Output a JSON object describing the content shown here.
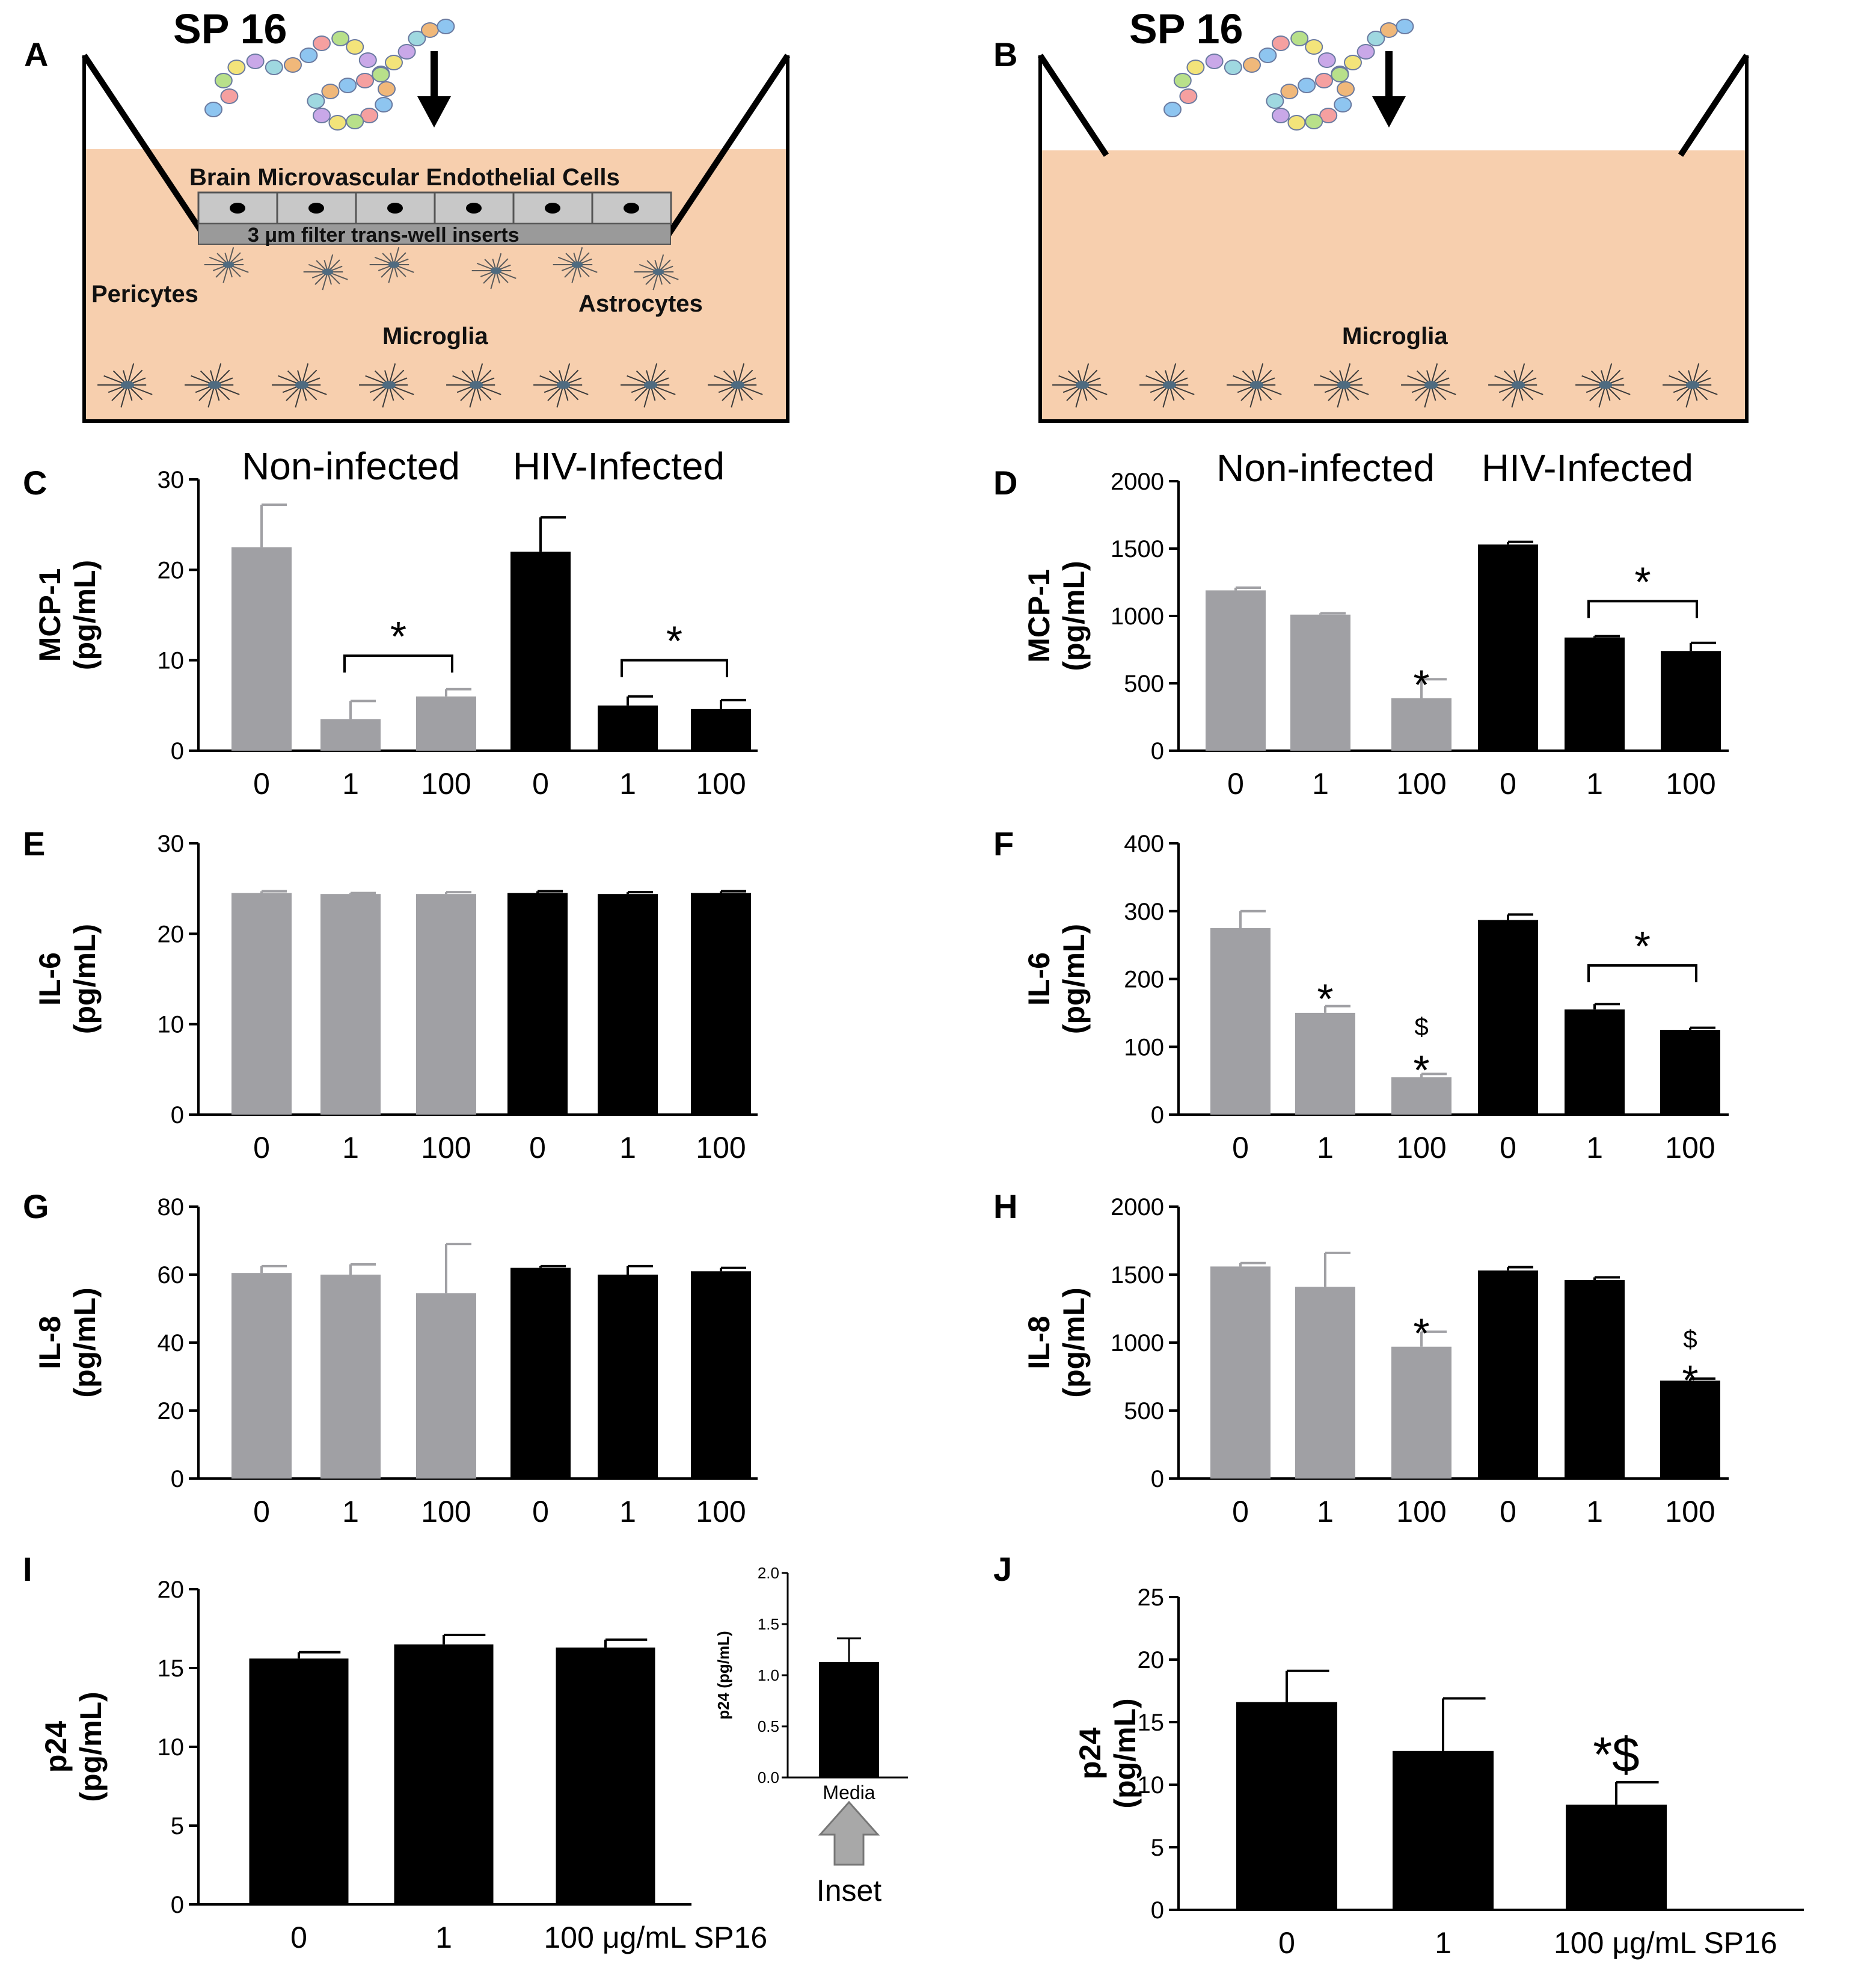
{
  "colors": {
    "noninfected": "#a0a0a4",
    "infected": "#000000",
    "medium": "#f7cfae",
    "cell": "#c8c8c8",
    "filter": "#9a9a9a"
  },
  "diagram_a": {
    "letter": "A",
    "title": "SP 16",
    "labels": {
      "bmvec": "Brain Microvascular Endothelial Cells",
      "filter": "3 μm filter trans-well inserts",
      "pericytes": "Pericytes",
      "astrocytes": "Astrocytes",
      "microglia": "Microglia"
    }
  },
  "diagram_b": {
    "letter": "B",
    "title": "SP 16",
    "labels": {
      "microglia": "Microglia"
    }
  },
  "chart_data": [
    {
      "id": "C",
      "type": "bar",
      "ylabel": "MCP-1\n(pg/mL)",
      "ylim": [
        0,
        30
      ],
      "yticks": [
        0,
        10,
        20,
        30
      ],
      "group_labels": [
        "Non-infected",
        "HIV-Infected"
      ],
      "categories": [
        "0",
        "1",
        "100",
        "0",
        "1",
        "100"
      ],
      "groups": [
        "noninfected",
        "noninfected",
        "noninfected",
        "infected",
        "infected",
        "infected"
      ],
      "values": [
        22.5,
        3.5,
        6.0,
        22.0,
        5.0,
        4.6
      ],
      "errors": [
        4.7,
        2.0,
        0.8,
        3.8,
        1.0,
        1.0
      ],
      "annotations": [
        {
          "kind": "bracket",
          "from": 1,
          "to": 2,
          "y": 10.5,
          "text": "*"
        },
        {
          "kind": "bracket",
          "from": 4,
          "to": 5,
          "y": 10.0,
          "text": "*"
        }
      ]
    },
    {
      "id": "D",
      "type": "bar",
      "ylabel": "MCP-1\n(pg/mL)",
      "ylim": [
        0,
        2000
      ],
      "yticks": [
        0,
        500,
        1000,
        1500,
        2000
      ],
      "group_labels": [
        "Non-infected",
        "HIV-Infected"
      ],
      "categories": [
        "0",
        "1",
        "100",
        "0",
        "1",
        "100"
      ],
      "groups": [
        "noninfected",
        "noninfected",
        "noninfected",
        "infected",
        "infected",
        "infected"
      ],
      "values": [
        1190,
        1010,
        390,
        1530,
        840,
        740
      ],
      "errors": [
        20,
        10,
        140,
        20,
        10,
        60
      ],
      "annotations": [
        {
          "kind": "star",
          "bar": 2,
          "y": 560,
          "text": "*"
        },
        {
          "kind": "bracket",
          "from": 4,
          "to": 5,
          "y": 1110,
          "text": "*"
        }
      ]
    },
    {
      "id": "E",
      "type": "bar",
      "ylabel": "IL-6\n(pg/mL)",
      "ylim": [
        0,
        30
      ],
      "yticks": [
        0,
        10,
        20,
        30
      ],
      "categories": [
        "0",
        "1",
        "100",
        "0",
        "1",
        "100"
      ],
      "groups": [
        "noninfected",
        "noninfected",
        "noninfected",
        "infected",
        "infected",
        "infected"
      ],
      "values": [
        24.5,
        24.4,
        24.4,
        24.5,
        24.4,
        24.5
      ],
      "errors": [
        0.2,
        0.1,
        0.2,
        0.2,
        0.2,
        0.2
      ],
      "annotations": []
    },
    {
      "id": "F",
      "type": "bar",
      "ylabel": "IL-6\n(pg/mL)",
      "ylim": [
        0,
        400
      ],
      "yticks": [
        0,
        100,
        200,
        300,
        400
      ],
      "categories": [
        "0",
        "1",
        "100",
        "0",
        "1",
        "100"
      ],
      "groups": [
        "noninfected",
        "noninfected",
        "noninfected",
        "infected",
        "infected",
        "infected"
      ],
      "values": [
        275,
        150,
        55,
        287,
        155,
        125
      ],
      "errors": [
        25,
        10,
        5,
        8,
        8,
        3
      ],
      "annotations": [
        {
          "kind": "star",
          "bar": 1,
          "y": 185,
          "text": "*"
        },
        {
          "kind": "star",
          "bar": 2,
          "y": 80,
          "text": "*"
        },
        {
          "kind": "dollar",
          "bar": 2,
          "y": 135,
          "text": "$"
        },
        {
          "kind": "bracket",
          "from": 4,
          "to": 5,
          "y": 220,
          "text": "*"
        }
      ]
    },
    {
      "id": "G",
      "type": "bar",
      "ylabel": "IL-8\n(pg/mL)",
      "ylim": [
        0,
        80
      ],
      "yticks": [
        0,
        20,
        40,
        60,
        80
      ],
      "categories": [
        "0",
        "1",
        "100",
        "0",
        "1",
        "100"
      ],
      "groups": [
        "noninfected",
        "noninfected",
        "noninfected",
        "infected",
        "infected",
        "infected"
      ],
      "values": [
        60.5,
        60.0,
        54.5,
        62.0,
        60.0,
        61.0
      ],
      "errors": [
        2.0,
        3.0,
        14.5,
        0.5,
        2.5,
        1.0
      ],
      "annotations": []
    },
    {
      "id": "H",
      "type": "bar",
      "ylabel": "IL-8\n(pg/mL)",
      "ylim": [
        0,
        2000
      ],
      "yticks": [
        0,
        500,
        1000,
        1500,
        2000
      ],
      "categories": [
        "0",
        "1",
        "100",
        "0",
        "1",
        "100"
      ],
      "groups": [
        "noninfected",
        "noninfected",
        "noninfected",
        "infected",
        "infected",
        "infected"
      ],
      "values": [
        1560,
        1410,
        970,
        1530,
        1460,
        720
      ],
      "errors": [
        25,
        250,
        110,
        25,
        20,
        15
      ],
      "annotations": [
        {
          "kind": "star",
          "bar": 2,
          "y": 1140,
          "text": "*"
        },
        {
          "kind": "star",
          "bar": 5,
          "y": 795,
          "text": "*"
        },
        {
          "kind": "dollar",
          "bar": 5,
          "y": 1050,
          "text": "$"
        }
      ]
    },
    {
      "id": "I",
      "type": "bar",
      "ylabel": "p24\n(pg/mL)",
      "ylim": [
        0,
        20
      ],
      "yticks": [
        0,
        5,
        10,
        15,
        20
      ],
      "categories": [
        "0",
        "1",
        "100 μg/mL SP16"
      ],
      "groups": [
        "infected",
        "infected",
        "infected"
      ],
      "values": [
        15.6,
        16.5,
        16.3
      ],
      "errors": [
        0.4,
        0.6,
        0.5
      ],
      "annotations": [],
      "inset": {
        "ylabel": "p24 (pg/mL)",
        "ylim": [
          0,
          2.0
        ],
        "yticks": [
          "0.0",
          "0.5",
          "1.0",
          "1.5",
          "2.0"
        ],
        "categories": [
          "Media"
        ],
        "values": [
          1.13
        ],
        "errors": [
          0.23
        ],
        "label": "Inset"
      }
    },
    {
      "id": "J",
      "type": "bar",
      "ylabel": "p24\n(pg/mL)",
      "ylim": [
        0,
        25
      ],
      "yticks": [
        0,
        5,
        10,
        15,
        20,
        25
      ],
      "categories": [
        "0",
        "1",
        "100 μg/mL SP16"
      ],
      "groups": [
        "infected",
        "infected",
        "infected"
      ],
      "values": [
        16.6,
        12.7,
        8.4
      ],
      "errors": [
        2.5,
        4.2,
        1.8
      ],
      "annotations": [
        {
          "kind": "stardollar",
          "bar": 2,
          "y": 12.5,
          "text": "*$"
        }
      ]
    }
  ]
}
